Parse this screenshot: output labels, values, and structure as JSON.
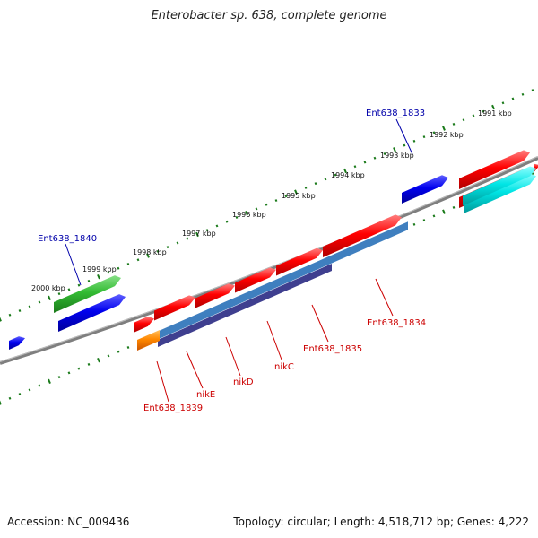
{
  "title": "Enterobacter sp. 638, complete genome",
  "accession": "Accession: NC_009436",
  "topology": "Topology: circular; Length: 4,518,712 bp; Genes: 4,222",
  "colors": {
    "backbone": "#7f7f7f",
    "tick": "#1a7a1a",
    "label_red": "#cc0000",
    "label_blue": "#0000aa",
    "gene_red": "#ff0000",
    "gene_blue": "#0000ee",
    "gene_green": "#33bb33",
    "gene_cyan": "#00e5e5",
    "gene_orange": "#ff8800",
    "operon_light": "#3f7fbf",
    "operon_dark": "#3f3f8f"
  },
  "kbp_ticks": [
    "2000 kbp",
    "1999 kbp",
    "1998 kbp",
    "1997 kbp",
    "1996 kbp",
    "1995 kbp",
    "1994 kbp",
    "1993 kbp",
    "1992 kbp",
    "1991 kbp"
  ],
  "gene_labels": [
    "Ent638_1840",
    "Ent638_1833",
    "Ent638_1839",
    "nikE",
    "nikD",
    "nikC",
    "Ent638_1835",
    "Ent638_1834"
  ]
}
